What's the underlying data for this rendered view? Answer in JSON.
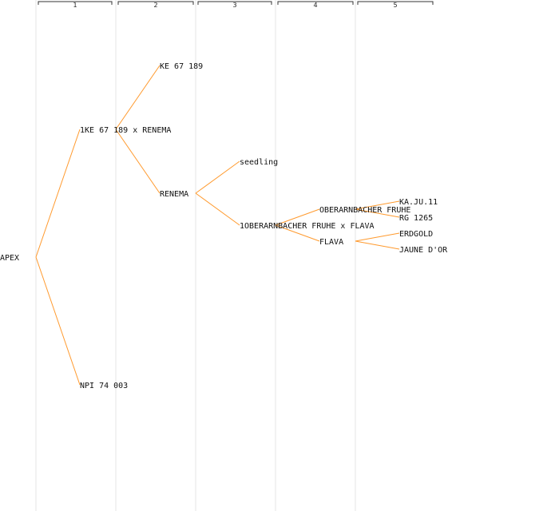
{
  "generations": [
    "1",
    "2",
    "3",
    "4",
    "5"
  ],
  "colors": {
    "edge": "#ff9a2e",
    "column_line": "#e6e6e6",
    "header_line": "#333333",
    "text": "#111111"
  },
  "nodes": [
    {
      "id": "apex",
      "label": "APEX",
      "gen": 0
    },
    {
      "id": "g1-top",
      "label": "1KE 67 189 x RENEMA",
      "gen": 1,
      "parent": "apex"
    },
    {
      "id": "g1-bottom",
      "label": "NPI 74 003",
      "gen": 1,
      "parent": "apex"
    },
    {
      "id": "g2-top",
      "label": "KE 67 189",
      "gen": 2,
      "parent": "g1-top"
    },
    {
      "id": "g2-bottom",
      "label": "RENEMA",
      "gen": 2,
      "parent": "g1-top"
    },
    {
      "id": "g3-top",
      "label": "seedling",
      "gen": 3,
      "parent": "g2-bottom"
    },
    {
      "id": "g3-bottom",
      "label": "1OBERARNBACHER FRUHE x FLAVA",
      "gen": 3,
      "parent": "g2-bottom"
    },
    {
      "id": "g4-top",
      "label": "OBERARNBACHER FRUHE",
      "gen": 4,
      "parent": "g3-bottom"
    },
    {
      "id": "g4-bottom",
      "label": "FLAVA",
      "gen": 4,
      "parent": "g3-bottom"
    },
    {
      "id": "g5-1",
      "label": "KA.JU.11",
      "gen": 5,
      "parent": "g4-top"
    },
    {
      "id": "g5-2",
      "label": "RG 1265",
      "gen": 5,
      "parent": "g4-top"
    },
    {
      "id": "g5-3",
      "label": "ERDGOLD",
      "gen": 5,
      "parent": "g4-bottom"
    },
    {
      "id": "g5-4",
      "label": "JAUNE D'OR",
      "gen": 5,
      "parent": "g4-bottom"
    }
  ]
}
